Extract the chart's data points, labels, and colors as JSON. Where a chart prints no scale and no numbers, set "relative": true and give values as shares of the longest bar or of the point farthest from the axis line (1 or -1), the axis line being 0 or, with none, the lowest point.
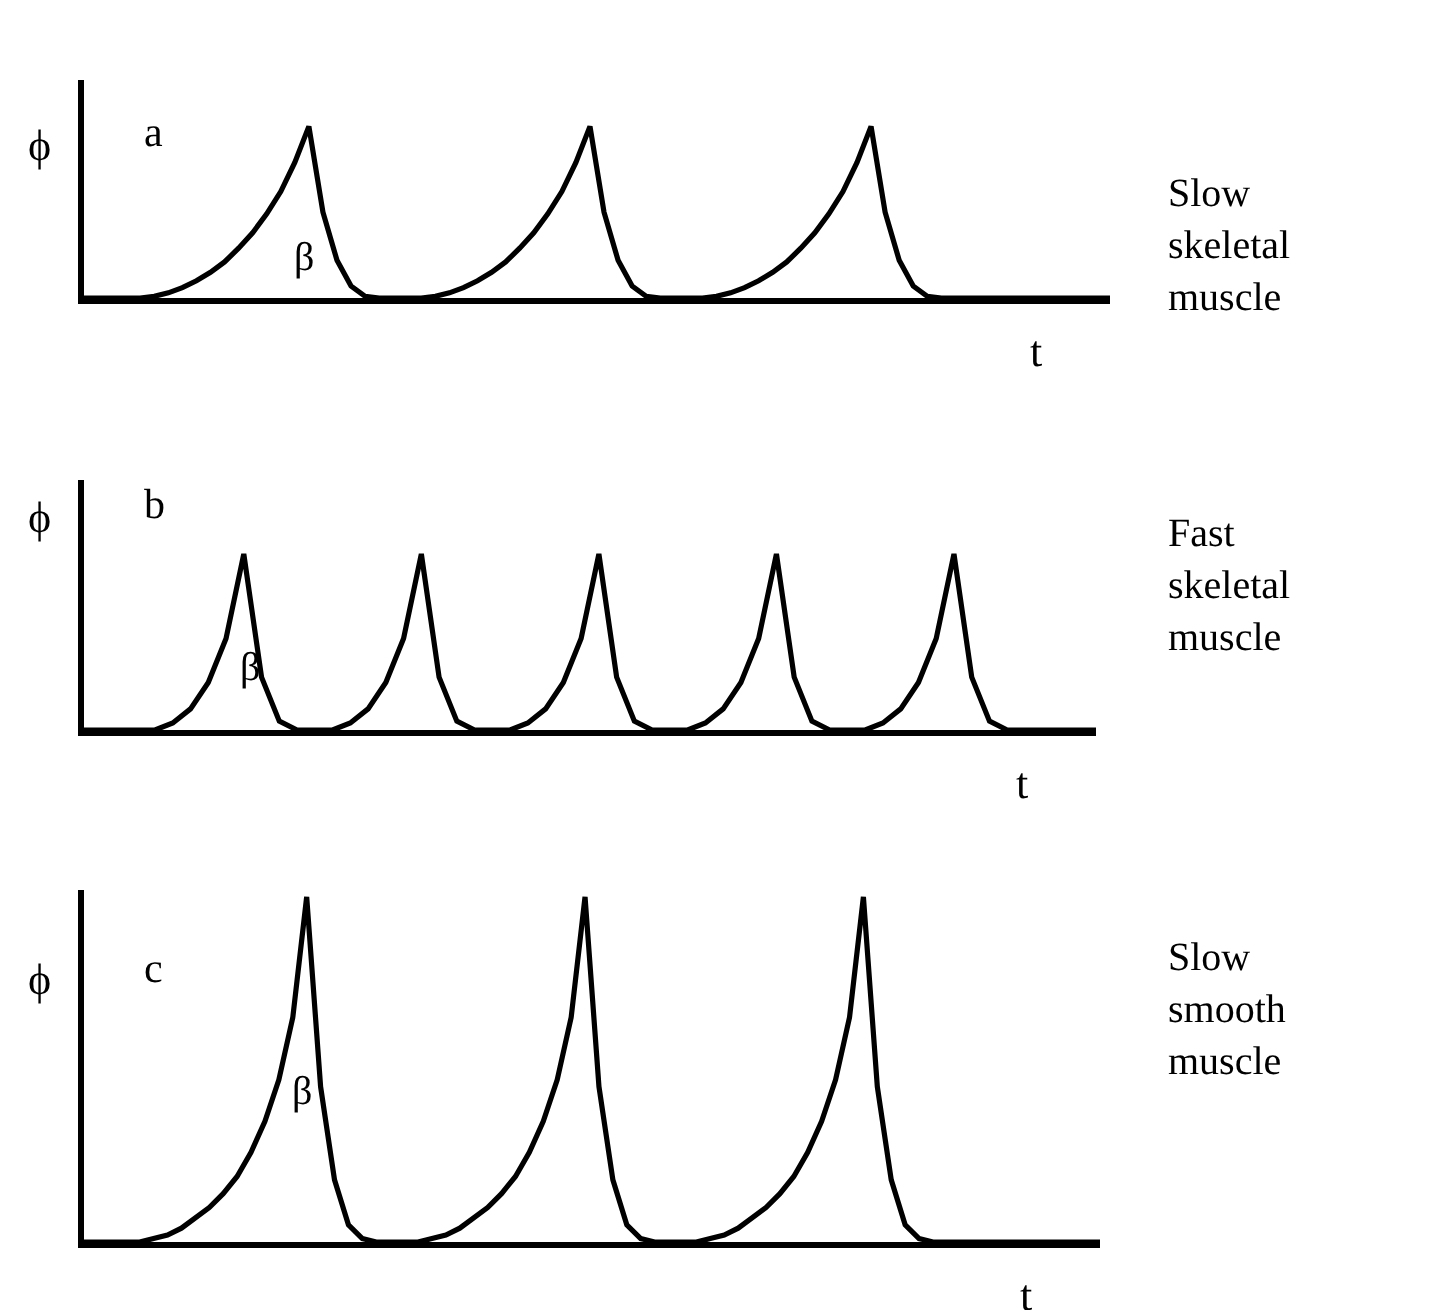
{
  "chart_data": [
    {
      "type": "line",
      "title": "a",
      "xlabel": "t",
      "ylabel": "ϕ",
      "relative": true,
      "tick_labels": false,
      "color": "#000000",
      "categories": [
        null,
        null,
        null,
        null,
        null,
        null,
        null,
        null,
        null,
        null,
        null,
        null,
        null,
        null,
        null,
        null,
        null,
        null,
        null,
        null,
        null,
        null,
        null,
        null,
        null,
        null,
        null,
        null,
        null,
        null,
        null,
        null,
        null,
        null,
        null,
        null,
        null,
        null,
        null,
        null,
        null,
        null,
        null,
        null,
        null,
        null,
        null,
        null,
        null,
        null,
        null,
        null,
        null,
        null,
        null,
        null,
        null,
        null,
        null,
        null,
        null,
        null,
        null,
        null,
        null,
        null,
        null,
        null,
        null,
        null,
        null,
        null,
        null,
        null
      ],
      "values": [
        0,
        0,
        0,
        0,
        0,
        0.01,
        0.03,
        0.06,
        0.1,
        0.15,
        0.21,
        0.29,
        0.38,
        0.49,
        0.62,
        0.79,
        1,
        0.5,
        0.22,
        0.07,
        0.01,
        0,
        0,
        0,
        0,
        0.01,
        0.03,
        0.06,
        0.1,
        0.15,
        0.21,
        0.29,
        0.38,
        0.49,
        0.62,
        0.79,
        1,
        0.5,
        0.22,
        0.07,
        0.01,
        0,
        0,
        0,
        0,
        0.01,
        0.03,
        0.06,
        0.1,
        0.15,
        0.21,
        0.29,
        0.38,
        0.49,
        0.62,
        0.79,
        1,
        0.5,
        0.22,
        0.07,
        0.01,
        0,
        0,
        0,
        0,
        0,
        0,
        0,
        0,
        0,
        0,
        0,
        0,
        0
      ],
      "annotations": [
        "β",
        "Slow skeletal muscle"
      ]
    },
    {
      "type": "line",
      "title": "b",
      "xlabel": "t",
      "ylabel": "ϕ",
      "relative": true,
      "tick_labels": false,
      "color": "#000000",
      "categories": [
        null,
        null,
        null,
        null,
        null,
        null,
        null,
        null,
        null,
        null,
        null,
        null,
        null,
        null,
        null,
        null,
        null,
        null,
        null,
        null,
        null,
        null,
        null,
        null,
        null,
        null,
        null,
        null,
        null,
        null,
        null,
        null,
        null,
        null,
        null,
        null,
        null,
        null,
        null,
        null,
        null,
        null,
        null,
        null,
        null,
        null,
        null,
        null,
        null,
        null,
        null,
        null,
        null,
        null,
        null,
        null,
        null,
        null
      ],
      "values": [
        0,
        0,
        0,
        0,
        0,
        0.04,
        0.12,
        0.27,
        0.52,
        1,
        0.3,
        0.05,
        0,
        0,
        0,
        0.04,
        0.12,
        0.27,
        0.52,
        1,
        0.3,
        0.05,
        0,
        0,
        0,
        0.04,
        0.12,
        0.27,
        0.52,
        1,
        0.3,
        0.05,
        0,
        0,
        0,
        0.04,
        0.12,
        0.27,
        0.52,
        1,
        0.3,
        0.05,
        0,
        0,
        0,
        0.04,
        0.12,
        0.27,
        0.52,
        1,
        0.3,
        0.05,
        0,
        0,
        0,
        0,
        0,
        0
      ],
      "annotations": [
        "β",
        "Fast skeletal muscle"
      ]
    },
    {
      "type": "line",
      "title": "c",
      "xlabel": "t",
      "ylabel": "ϕ",
      "relative": true,
      "tick_labels": false,
      "color": "#000000",
      "categories": [
        null,
        null,
        null,
        null,
        null,
        null,
        null,
        null,
        null,
        null,
        null,
        null,
        null,
        null,
        null,
        null,
        null,
        null,
        null,
        null,
        null,
        null,
        null,
        null,
        null,
        null,
        null,
        null,
        null,
        null,
        null,
        null,
        null,
        null,
        null,
        null,
        null,
        null,
        null,
        null,
        null,
        null,
        null,
        null,
        null,
        null,
        null,
        null,
        null,
        null,
        null,
        null,
        null,
        null,
        null,
        null,
        null,
        null,
        null,
        null,
        null,
        null,
        null,
        null,
        null,
        null,
        null,
        null,
        null,
        null,
        null,
        null,
        null,
        null
      ],
      "values": [
        0,
        0,
        0,
        0,
        0,
        0.01,
        0.02,
        0.04,
        0.07,
        0.1,
        0.14,
        0.19,
        0.26,
        0.35,
        0.47,
        0.65,
        1,
        0.45,
        0.18,
        0.05,
        0.01,
        0,
        0,
        0,
        0,
        0.01,
        0.02,
        0.04,
        0.07,
        0.1,
        0.14,
        0.19,
        0.26,
        0.35,
        0.47,
        0.65,
        1,
        0.45,
        0.18,
        0.05,
        0.01,
        0,
        0,
        0,
        0,
        0.01,
        0.02,
        0.04,
        0.07,
        0.1,
        0.14,
        0.19,
        0.26,
        0.35,
        0.47,
        0.65,
        1,
        0.45,
        0.18,
        0.05,
        0.01,
        0,
        0,
        0,
        0,
        0,
        0,
        0,
        0,
        0,
        0,
        0,
        0,
        0
      ],
      "annotations": [
        "β",
        "Slow smooth muscle"
      ]
    }
  ]
}
